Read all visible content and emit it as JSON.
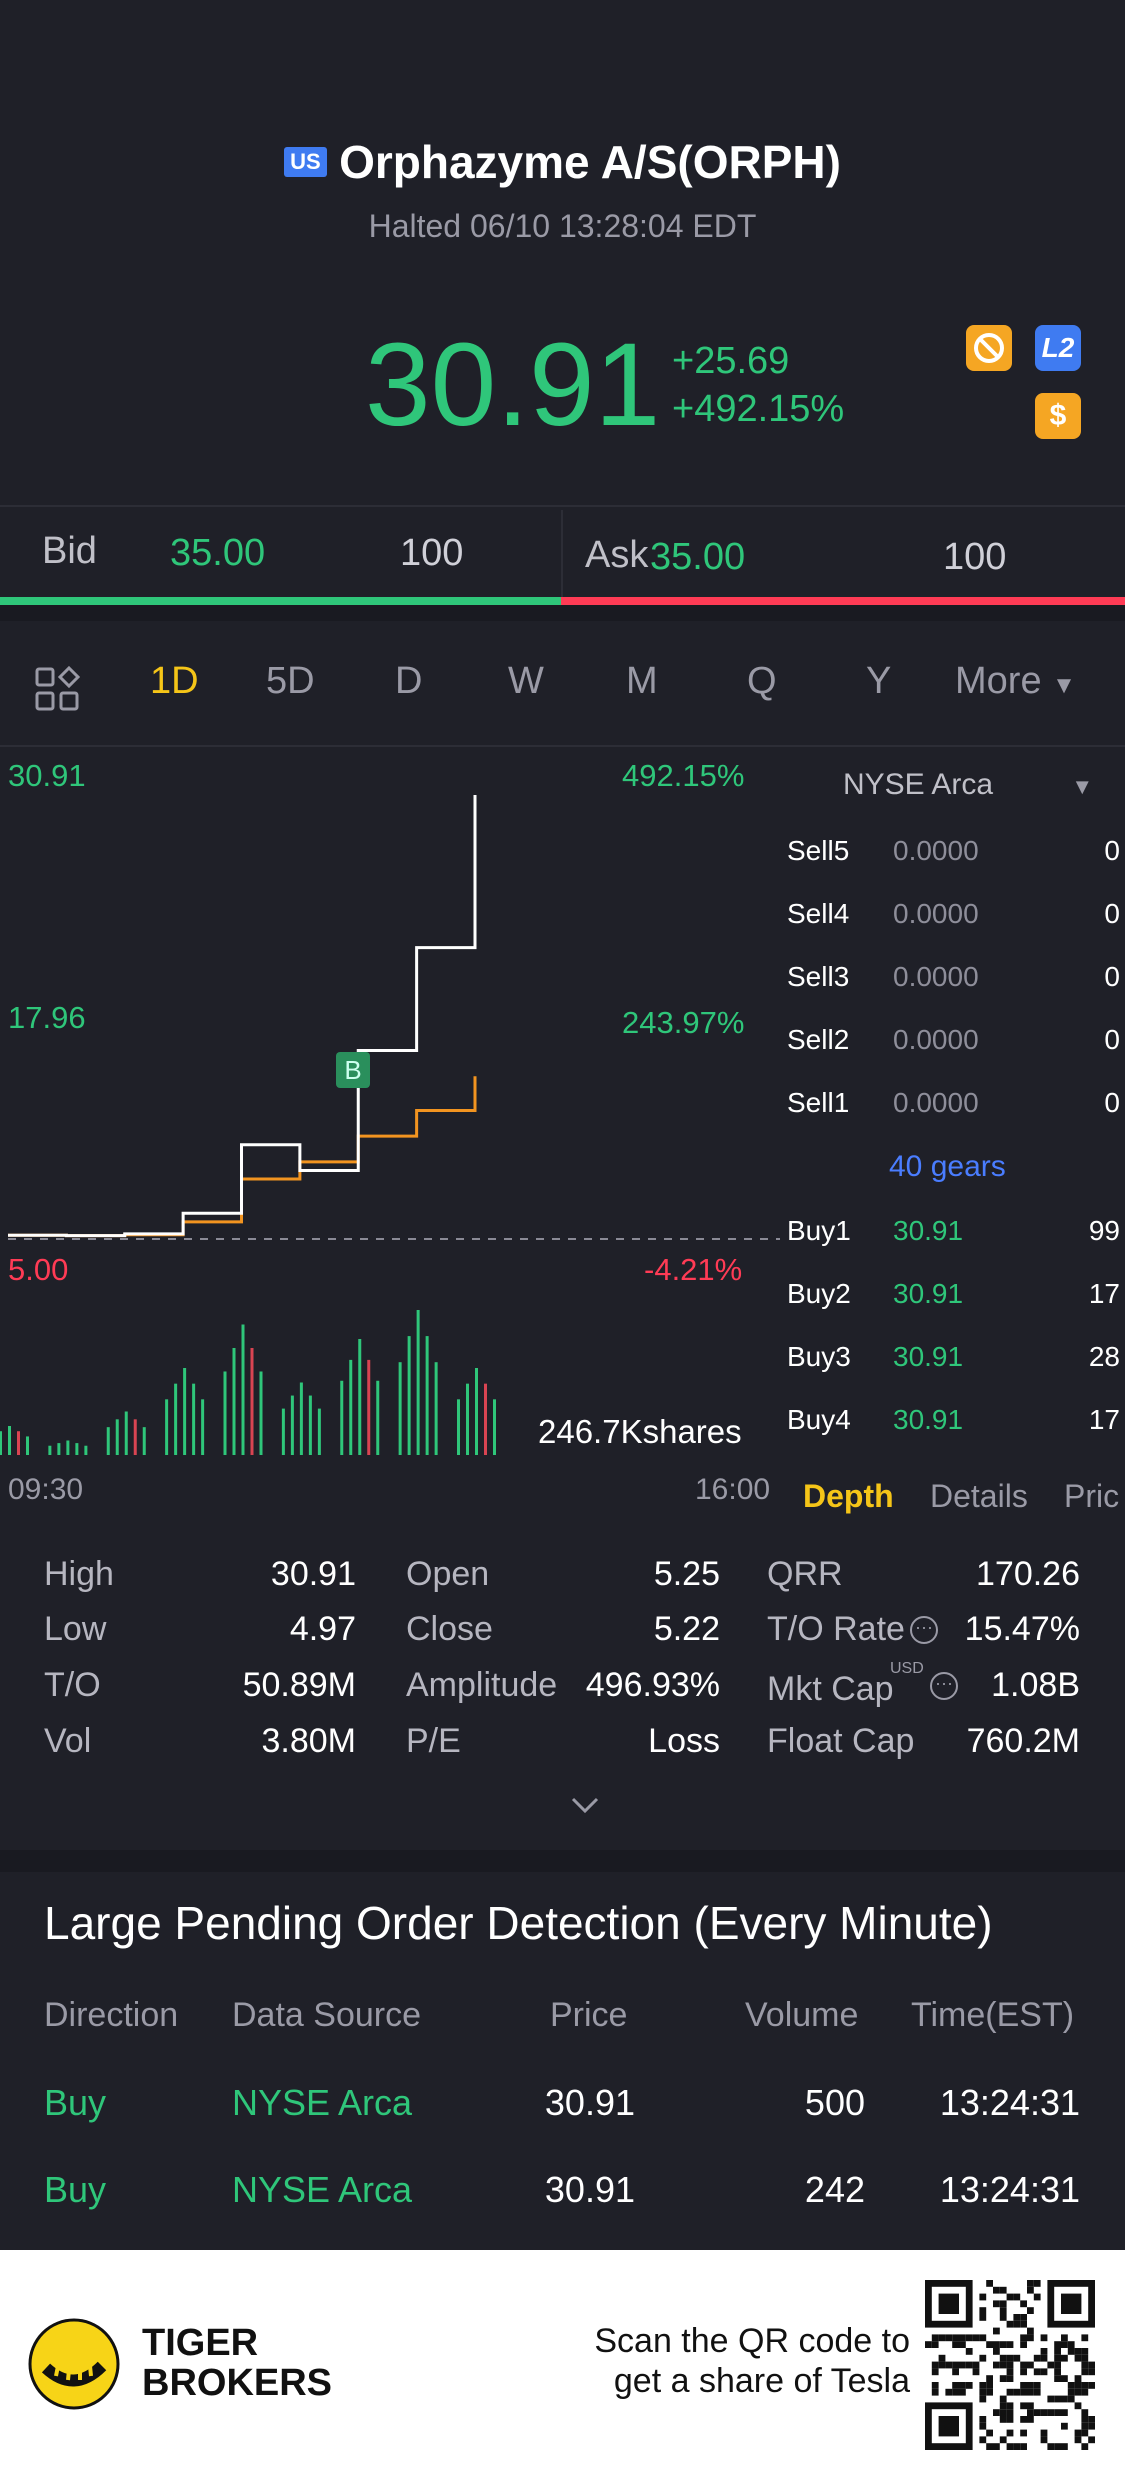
{
  "header": {
    "country_flag": "US",
    "name": "Orphazyme A/S(ORPH)",
    "status": "Halted 06/10 13:28:04 EDT"
  },
  "quote": {
    "price": "30.91",
    "change": "+25.69",
    "change_pct": "+492.15%",
    "badge_l2": "L2",
    "badge_dollar": "$"
  },
  "bidask": {
    "bid_label": "Bid",
    "bid_price": "35.00",
    "bid_size": "100",
    "ask_label": "Ask",
    "ask_price": "35.00",
    "ask_size": "100"
  },
  "tabs": {
    "d1": "1D",
    "d5": "5D",
    "d": "D",
    "w": "W",
    "m": "M",
    "q": "Q",
    "y": "Y",
    "more": "More"
  },
  "chart": {
    "y_top": "30.91",
    "y_mid": "17.96",
    "y_low": "5.00",
    "pct_top": "492.15%",
    "pct_mid": "243.97%",
    "pct_low": "-4.21%",
    "marker": "B",
    "volume": "246.7Kshares",
    "x_start": "09:30",
    "x_end": "16:00"
  },
  "chart_data": {
    "type": "line",
    "x": [
      "09:30",
      "10:00",
      "10:30",
      "11:00",
      "11:30",
      "12:00",
      "12:30",
      "13:00",
      "13:28"
    ],
    "series": [
      {
        "values": [
          5.22,
          5.2,
          5.3,
          6.5,
          10.5,
          9.0,
          16.0,
          22.0,
          30.91
        ]
      },
      {
        "values": [
          5.22,
          5.2,
          5.25,
          6.0,
          8.5,
          9.5,
          11.0,
          12.5,
          14.5
        ]
      }
    ],
    "ylim": [
      5.0,
      30.91
    ],
    "volume": [
      0.2,
      0.1,
      0.3,
      0.6,
      0.9,
      0.5,
      0.8,
      1.0,
      0.6
    ]
  },
  "book": {
    "exchange": "NYSE Arca",
    "sell": [
      {
        "label": "Sell5",
        "price": "0.0000",
        "size": "0"
      },
      {
        "label": "Sell4",
        "price": "0.0000",
        "size": "0"
      },
      {
        "label": "Sell3",
        "price": "0.0000",
        "size": "0"
      },
      {
        "label": "Sell2",
        "price": "0.0000",
        "size": "0"
      },
      {
        "label": "Sell1",
        "price": "0.0000",
        "size": "0"
      }
    ],
    "gears": "40 gears",
    "buy": [
      {
        "label": "Buy1",
        "price": "30.91",
        "size": "99"
      },
      {
        "label": "Buy2",
        "price": "30.91",
        "size": "17"
      },
      {
        "label": "Buy3",
        "price": "30.91",
        "size": "28"
      },
      {
        "label": "Buy4",
        "price": "30.91",
        "size": "17"
      }
    ],
    "tab_depth": "Depth",
    "tab_details": "Details",
    "tab_price": "Pric"
  },
  "stats": {
    "high_l": "High",
    "high_v": "30.91",
    "low_l": "Low",
    "low_v": "4.97",
    "to_l": "T/O",
    "to_v": "50.89M",
    "vol_l": "Vol",
    "vol_v": "3.80M",
    "open_l": "Open",
    "open_v": "5.25",
    "close_l": "Close",
    "close_v": "5.22",
    "amp_l": "Amplitude",
    "amp_v": "496.93%",
    "pe_l": "P/E",
    "pe_v": "Loss",
    "qrr_l": "QRR",
    "qrr_v": "170.26",
    "torate_l": "T/O Rate",
    "torate_v": "15.47%",
    "mktcap_l": "Mkt Cap",
    "mktcap_unit": "USD",
    "mktcap_v": "1.08B",
    "float_l": "Float Cap",
    "float_v": "760.2M"
  },
  "pending": {
    "title": "Large Pending Order Detection (Every Minute)",
    "headers": {
      "direction": "Direction",
      "source": "Data Source",
      "price": "Price",
      "volume": "Volume",
      "time": "Time(EST)"
    },
    "rows": [
      {
        "direction": "Buy",
        "source": "NYSE Arca",
        "price": "30.91",
        "volume": "500",
        "time": "13:24:31"
      },
      {
        "direction": "Buy",
        "source": "NYSE Arca",
        "price": "30.91",
        "volume": "242",
        "time": "13:24:31"
      }
    ]
  },
  "footer": {
    "brand_line1": "TIGER",
    "brand_line2": "BROKERS",
    "promo_line1": "Scan the QR code to",
    "promo_line2": "get a share of Tesla"
  }
}
